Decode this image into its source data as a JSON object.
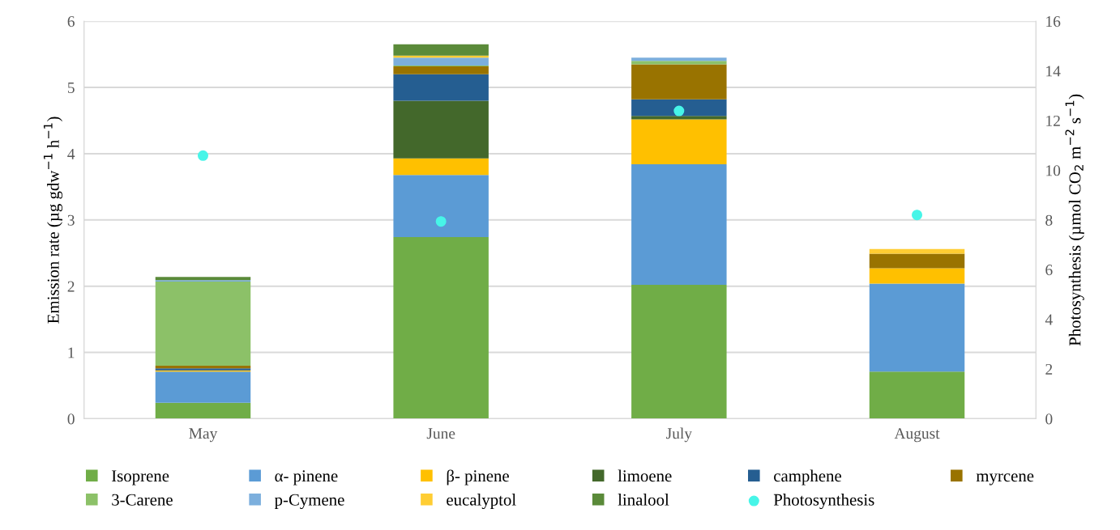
{
  "chart_data": {
    "type": "bar",
    "stacked": true,
    "categories": [
      "May",
      "June",
      "July",
      "August"
    ],
    "ylabel": "Emission rate (µg gdw$^{−1}$ h$^{−1}$)",
    "y2label": "Photosynthesis (µmol CO$_{2}$ m$^{−2}$ s$^{−1}$)",
    "ylim": [
      0,
      6
    ],
    "yticks": [
      0,
      1,
      2,
      3,
      4,
      5,
      6
    ],
    "y2lim": [
      0,
      16
    ],
    "y2ticks": [
      0,
      2,
      4,
      6,
      8,
      10,
      12,
      14,
      16
    ],
    "grid": "y",
    "legend": "bottom",
    "series": [
      {
        "name": "Isoprene",
        "color": "#70ad47",
        "values": [
          0.24,
          2.74,
          2.02,
          0.71
        ]
      },
      {
        "name": "α- pinene",
        "color": "#5b9bd5",
        "values": [
          0.47,
          0.94,
          1.82,
          1.33
        ]
      },
      {
        "name": "β- pinene",
        "color": "#ffc000",
        "values": [
          0.02,
          0.25,
          0.68,
          0.23
        ]
      },
      {
        "name": "limoene",
        "color": "#43682b",
        "values": [
          0.0,
          0.87,
          0.05,
          0.0
        ]
      },
      {
        "name": "camphene",
        "color": "#255e91",
        "values": [
          0.03,
          0.4,
          0.25,
          0.0
        ]
      },
      {
        "name": "myrcene",
        "color": "#997300",
        "values": [
          0.04,
          0.12,
          0.53,
          0.22
        ]
      },
      {
        "name": "3-Carene",
        "color": "#8cc168",
        "values": [
          1.27,
          0.01,
          0.05,
          0.0
        ]
      },
      {
        "name": "p-Cymene",
        "color": "#7cafdd",
        "values": [
          0.02,
          0.12,
          0.05,
          0.0
        ]
      },
      {
        "name": "eucalyptol",
        "color": "#ffcd33",
        "values": [
          0.0,
          0.03,
          0.0,
          0.07
        ]
      },
      {
        "name": "linalool",
        "color": "#5a8a39",
        "values": [
          0.05,
          0.17,
          0.0,
          0.0
        ]
      },
      {
        "name": "Photosynthesis",
        "type": "scatter",
        "axis": "y2",
        "marker": "circle",
        "color": "#47f5e8",
        "values": [
          10.59,
          7.94,
          12.39,
          8.2
        ]
      }
    ]
  }
}
